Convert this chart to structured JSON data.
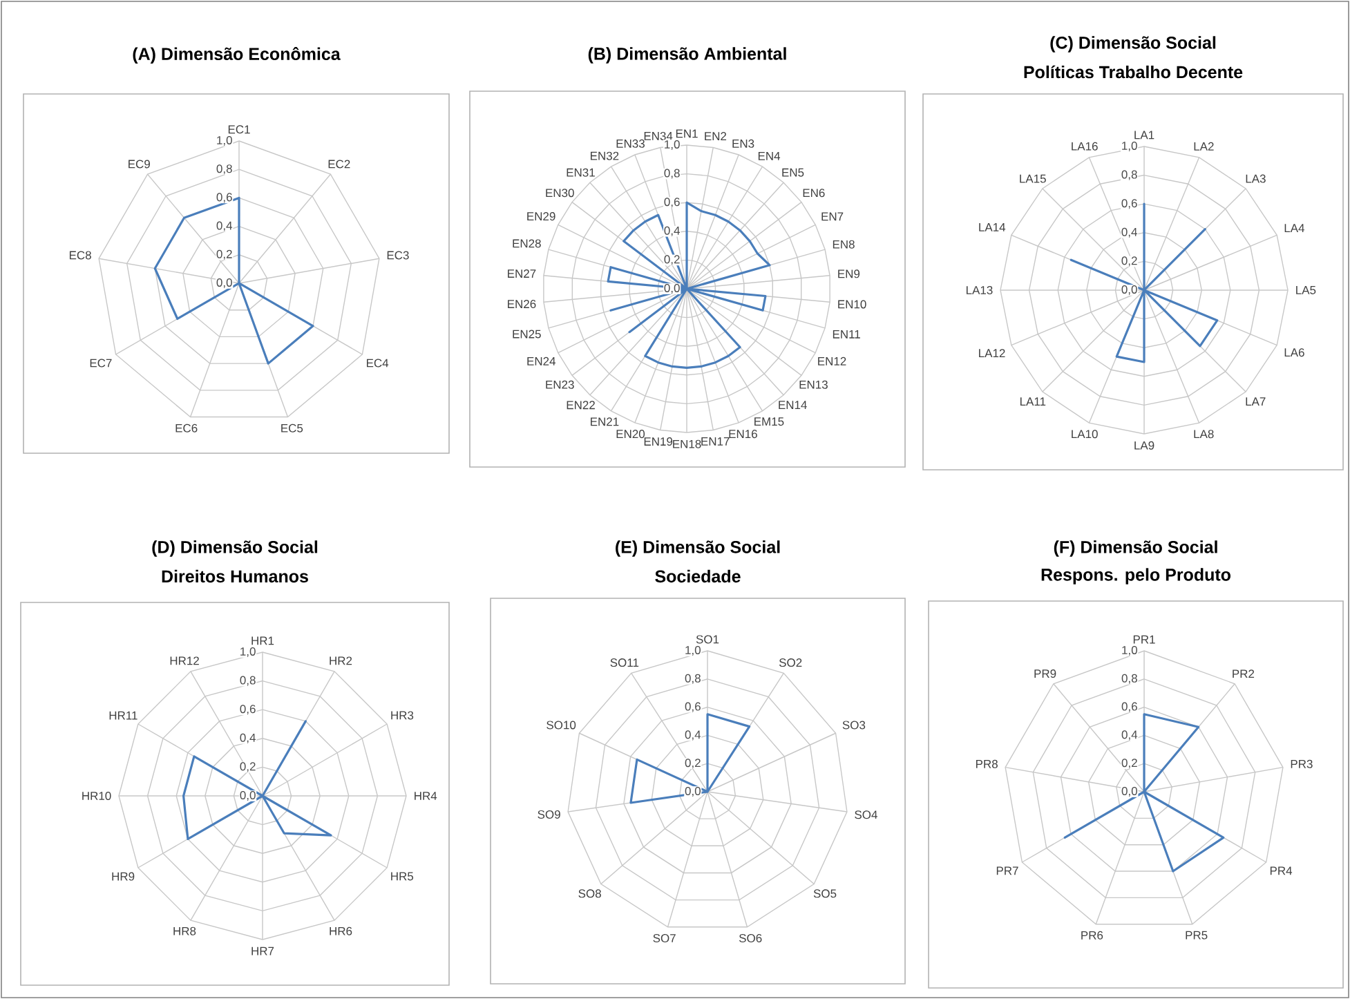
{
  "chart_data": [
    {
      "type": "radar",
      "title": "(A) Dimensão Econômica",
      "categories": [
        "EC1",
        "EC2",
        "EC3",
        "EC4",
        "EC5",
        "EC6",
        "EC7",
        "EC8",
        "EC9"
      ],
      "series": [
        {
          "color": "#4a7ebb",
          "values": [
            0.6,
            0,
            0,
            0.6,
            0.6,
            0,
            0.5,
            0.6,
            0.6
          ]
        }
      ],
      "ylim": [
        0,
        1
      ],
      "yticks": [
        {
          "value": 0,
          "label": "0,0"
        },
        {
          "value": 0.2,
          "label": "0,2"
        },
        {
          "value": 0.4,
          "label": "0,4"
        },
        {
          "value": 0.6,
          "label": "0,6"
        },
        {
          "value": 0.8,
          "label": "0,8"
        },
        {
          "value": 1,
          "label": "1,0"
        }
      ],
      "grid": true
    },
    {
      "type": "radar",
      "title": "(B) Dimensão Ambiental",
      "categories": [
        "EN1",
        "EN2",
        "EN3",
        "EN4",
        "EN5",
        "EN6",
        "EN7",
        "EN8",
        "EN9",
        "EN10",
        "EN11",
        "EN12",
        "EN13",
        "EN14",
        "EM15",
        "EN16",
        "EN17",
        "EN18",
        "EN19",
        "EN20",
        "EN21",
        "EN22",
        "EN23",
        "EN24",
        "EN25",
        "EN26",
        "EN27",
        "EN28",
        "EN29",
        "EN30",
        "EN31",
        "EN32",
        "EN33",
        "EN34"
      ],
      "series": [
        {
          "color": "#4a7ebb",
          "values": [
            0.6,
            0.55,
            0.55,
            0.55,
            0.55,
            0.55,
            0.55,
            0.6,
            0,
            0.55,
            0.55,
            0,
            0,
            0.55,
            0.55,
            0.55,
            0.55,
            0.55,
            0.55,
            0.55,
            0.55,
            0,
            0.5,
            0,
            0.55,
            0,
            0.55,
            0.55,
            0,
            0.55,
            0.55,
            0.55,
            0.55,
            0
          ]
        }
      ],
      "ylim": [
        0,
        1
      ],
      "yticks": [
        {
          "value": 0,
          "label": "0,0"
        },
        {
          "value": 0.2,
          "label": "0,2"
        },
        {
          "value": 0.4,
          "label": "0,4"
        },
        {
          "value": 0.6,
          "label": "0,6"
        },
        {
          "value": 0.8,
          "label": "0,8"
        },
        {
          "value": 1,
          "label": "1,0"
        }
      ],
      "grid": true
    },
    {
      "type": "radar",
      "title": "(C) Dimensão Social",
      "subtitle": "Políticas Trabalho Decente",
      "categories": [
        "LA1",
        "LA2",
        "LA3",
        "LA4",
        "LA5",
        "LA6",
        "LA7",
        "LA8",
        "LA9",
        "LA10",
        "LA11",
        "LA12",
        "LA13",
        "LA14",
        "LA15",
        "LA16"
      ],
      "series": [
        {
          "color": "#4a7ebb",
          "values": [
            0.6,
            0,
            0.6,
            0,
            0,
            0.55,
            0.55,
            0,
            0.5,
            0.5,
            0,
            0,
            0,
            0.55,
            0,
            0
          ]
        }
      ],
      "ylim": [
        0,
        1
      ],
      "yticks": [
        {
          "value": 0,
          "label": "0,0"
        },
        {
          "value": 0.2,
          "label": "0,2"
        },
        {
          "value": 0.4,
          "label": "0,4"
        },
        {
          "value": 0.6,
          "label": "0,6"
        },
        {
          "value": 0.8,
          "label": "0,8"
        },
        {
          "value": 1,
          "label": "1,0"
        }
      ],
      "grid": true
    },
    {
      "type": "radar",
      "title": "(D) Dimensão Social",
      "subtitle": "Direitos Humanos",
      "categories": [
        "HR1",
        "HR2",
        "HR3",
        "HR4",
        "HR5",
        "HR6",
        "HR7",
        "HR8",
        "HR9",
        "HR10",
        "HR11",
        "HR12"
      ],
      "series": [
        {
          "color": "#4a7ebb",
          "values": [
            0,
            0.6,
            0,
            0,
            0.55,
            0.3,
            0,
            0,
            0.6,
            0.55,
            0.55,
            0
          ]
        }
      ],
      "ylim": [
        0,
        1
      ],
      "yticks": [
        {
          "value": 0,
          "label": "0,0"
        },
        {
          "value": 0.2,
          "label": "0,2"
        },
        {
          "value": 0.4,
          "label": "0,4"
        },
        {
          "value": 0.6,
          "label": "0,6"
        },
        {
          "value": 0.8,
          "label": "0,8"
        },
        {
          "value": 1,
          "label": "1,0"
        }
      ],
      "grid": true
    },
    {
      "type": "radar",
      "title": "(E) Dimensão Social",
      "subtitle": "Sociedade",
      "categories": [
        "SO1",
        "SO2",
        "SO3",
        "SO4",
        "SO5",
        "SO6",
        "SO7",
        "SO8",
        "SO9",
        "SO10",
        "SO11"
      ],
      "series": [
        {
          "color": "#4a7ebb",
          "values": [
            0.55,
            0.55,
            0,
            0,
            0,
            0,
            0,
            0,
            0.55,
            0.55,
            0
          ]
        }
      ],
      "ylim": [
        0,
        1
      ],
      "yticks": [
        {
          "value": 0,
          "label": "0,0"
        },
        {
          "value": 0.2,
          "label": "0,2"
        },
        {
          "value": 0.4,
          "label": "0,4"
        },
        {
          "value": 0.6,
          "label": "0,6"
        },
        {
          "value": 0.8,
          "label": "0,8"
        },
        {
          "value": 1,
          "label": "1,0"
        }
      ],
      "grid": true
    },
    {
      "type": "radar",
      "title": "(F) Dimensão Social",
      "subtitle": "Respons. pelo Produto",
      "categories": [
        "PR1",
        "PR2",
        "PR3",
        "PR4",
        "PR5",
        "PR6",
        "PR7",
        "PR8",
        "PR9"
      ],
      "series": [
        {
          "color": "#4a7ebb",
          "values": [
            0.55,
            0.6,
            0,
            0.65,
            0.6,
            0,
            0.65,
            0,
            0
          ]
        }
      ],
      "ylim": [
        0,
        1
      ],
      "yticks": [
        {
          "value": 0,
          "label": "0,0"
        },
        {
          "value": 0.2,
          "label": "0,2"
        },
        {
          "value": 0.4,
          "label": "0,4"
        },
        {
          "value": 0.6,
          "label": "0,6"
        },
        {
          "value": 0.8,
          "label": "0,8"
        },
        {
          "value": 1,
          "label": "1,0"
        }
      ],
      "grid": true
    }
  ]
}
